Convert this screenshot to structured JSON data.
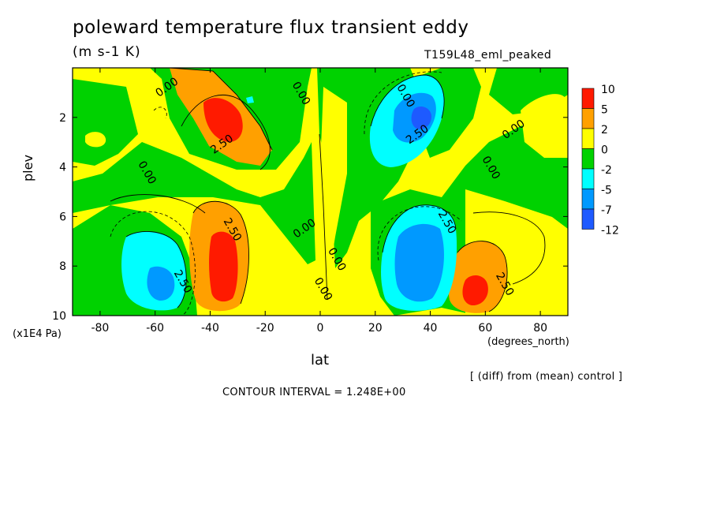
{
  "title": "poleward temperature flux transient eddy",
  "units": "(m s-1 K)",
  "run_name": "T159L48_eml_peaked",
  "footer": {
    "comparison": "[ (diff) from (mean) control ]",
    "contour_interval": "CONTOUR INTERVAL = 1.248E+00"
  },
  "chart_data": {
    "type": "heatmap",
    "xlabel": "lat",
    "x_unit": "(degrees_north)",
    "ylabel": "plev",
    "y_unit": "(x1E4 Pa)",
    "xlim": [
      -90,
      90
    ],
    "ylim": [
      10,
      0
    ],
    "x_ticks": [
      -80,
      -60,
      -40,
      -20,
      0,
      20,
      40,
      60,
      80
    ],
    "x_tick_labels": [
      "-80",
      "-60",
      "-40",
      "-20",
      "0",
      "20",
      "40",
      "60",
      "80"
    ],
    "y_ticks": [
      2,
      4,
      6,
      8,
      10
    ],
    "y_tick_labels": [
      "2",
      "4",
      "6",
      "8",
      "10"
    ],
    "color_levels": [
      {
        "label": "10",
        "color": "#ff1a00"
      },
      {
        "label": "5",
        "color": "#ffa000"
      },
      {
        "label": "2",
        "color": "#ffff00"
      },
      {
        "label": "0",
        "color": "#00d200"
      },
      {
        "label": "-2",
        "color": "#00ffff"
      },
      {
        "label": "-5",
        "color": "#0099ff"
      },
      {
        "label": "-7",
        "color": "#1e5aff"
      },
      {
        "label": "-12",
        "color": ""
      }
    ],
    "colors": {
      "neg_deep": "#1e5aff",
      "neg_mid": "#0099ff",
      "neg_light": "#00ffff",
      "near_zero_neg": "#00d200",
      "near_zero_pos": "#ffff00",
      "pos_mid": "#ffa000",
      "pos_strong": "#ff1a00"
    },
    "features": [
      {
        "lat": -37,
        "plev": 2.3,
        "value": 6.0,
        "sign": "positive"
      },
      {
        "lat": -35,
        "plev": 8.0,
        "value": 7.5,
        "sign": "positive"
      },
      {
        "lat": -59,
        "plev": 8.8,
        "value": -5.5,
        "sign": "negative"
      },
      {
        "lat": 35,
        "plev": 2.4,
        "value": -5.5,
        "sign": "negative"
      },
      {
        "lat": 36,
        "plev": 8.2,
        "value": -6.5,
        "sign": "negative"
      },
      {
        "lat": 57,
        "plev": 9.1,
        "value": 8.0,
        "sign": "positive"
      }
    ],
    "contour_labels": [
      {
        "lat": -55,
        "plev": 0.9,
        "text": "0.00"
      },
      {
        "lat": -8,
        "plev": 1.1,
        "text": "0.00"
      },
      {
        "lat": 30,
        "plev": 1.2,
        "text": "0.00"
      },
      {
        "lat": 71,
        "plev": 2.6,
        "text": "0.00"
      },
      {
        "lat": 61,
        "plev": 4.1,
        "text": "0.00"
      },
      {
        "lat": -64,
        "plev": 4.3,
        "text": "0.00"
      },
      {
        "lat": -5,
        "plev": 6.6,
        "text": "0.00"
      },
      {
        "lat": 5,
        "plev": 7.8,
        "text": "0.00"
      },
      {
        "lat": 0,
        "plev": 9.0,
        "text": "0.00"
      },
      {
        "lat": -35,
        "plev": 3.2,
        "text": "2.50"
      },
      {
        "lat": -33,
        "plev": 6.6,
        "text": "2.50"
      },
      {
        "lat": -51,
        "plev": 8.7,
        "text": "2.50"
      },
      {
        "lat": 36,
        "plev": 2.8,
        "text": "2.50"
      },
      {
        "lat": 45,
        "plev": 6.3,
        "text": "2.50"
      },
      {
        "lat": 66,
        "plev": 8.8,
        "text": "2.50"
      }
    ]
  }
}
